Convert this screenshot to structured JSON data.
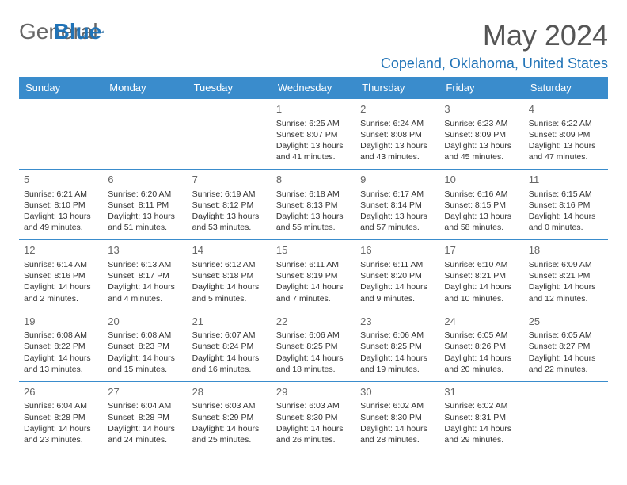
{
  "logo": {
    "text1": "General",
    "text2": "Blue"
  },
  "title": "May 2024",
  "location": "Copeland, Oklahoma, United States",
  "colors": {
    "header_bg": "#3a8ccc",
    "header_text": "#ffffff",
    "accent": "#2073b7",
    "body_text": "#333333",
    "muted": "#666666",
    "border": "#3a8ccc",
    "page_bg": "#ffffff"
  },
  "fonts": {
    "title_size": 36,
    "location_size": 18,
    "day_header_size": 13,
    "cell_size": 10.5,
    "daynum_size": 13
  },
  "days_of_week": [
    "Sunday",
    "Monday",
    "Tuesday",
    "Wednesday",
    "Thursday",
    "Friday",
    "Saturday"
  ],
  "weeks": [
    [
      null,
      null,
      null,
      {
        "n": "1",
        "sunrise": "6:25 AM",
        "sunset": "8:07 PM",
        "daylight": "13 hours and 41 minutes."
      },
      {
        "n": "2",
        "sunrise": "6:24 AM",
        "sunset": "8:08 PM",
        "daylight": "13 hours and 43 minutes."
      },
      {
        "n": "3",
        "sunrise": "6:23 AM",
        "sunset": "8:09 PM",
        "daylight": "13 hours and 45 minutes."
      },
      {
        "n": "4",
        "sunrise": "6:22 AM",
        "sunset": "8:09 PM",
        "daylight": "13 hours and 47 minutes."
      }
    ],
    [
      {
        "n": "5",
        "sunrise": "6:21 AM",
        "sunset": "8:10 PM",
        "daylight": "13 hours and 49 minutes."
      },
      {
        "n": "6",
        "sunrise": "6:20 AM",
        "sunset": "8:11 PM",
        "daylight": "13 hours and 51 minutes."
      },
      {
        "n": "7",
        "sunrise": "6:19 AM",
        "sunset": "8:12 PM",
        "daylight": "13 hours and 53 minutes."
      },
      {
        "n": "8",
        "sunrise": "6:18 AM",
        "sunset": "8:13 PM",
        "daylight": "13 hours and 55 minutes."
      },
      {
        "n": "9",
        "sunrise": "6:17 AM",
        "sunset": "8:14 PM",
        "daylight": "13 hours and 57 minutes."
      },
      {
        "n": "10",
        "sunrise": "6:16 AM",
        "sunset": "8:15 PM",
        "daylight": "13 hours and 58 minutes."
      },
      {
        "n": "11",
        "sunrise": "6:15 AM",
        "sunset": "8:16 PM",
        "daylight": "14 hours and 0 minutes."
      }
    ],
    [
      {
        "n": "12",
        "sunrise": "6:14 AM",
        "sunset": "8:16 PM",
        "daylight": "14 hours and 2 minutes."
      },
      {
        "n": "13",
        "sunrise": "6:13 AM",
        "sunset": "8:17 PM",
        "daylight": "14 hours and 4 minutes."
      },
      {
        "n": "14",
        "sunrise": "6:12 AM",
        "sunset": "8:18 PM",
        "daylight": "14 hours and 5 minutes."
      },
      {
        "n": "15",
        "sunrise": "6:11 AM",
        "sunset": "8:19 PM",
        "daylight": "14 hours and 7 minutes."
      },
      {
        "n": "16",
        "sunrise": "6:11 AM",
        "sunset": "8:20 PM",
        "daylight": "14 hours and 9 minutes."
      },
      {
        "n": "17",
        "sunrise": "6:10 AM",
        "sunset": "8:21 PM",
        "daylight": "14 hours and 10 minutes."
      },
      {
        "n": "18",
        "sunrise": "6:09 AM",
        "sunset": "8:21 PM",
        "daylight": "14 hours and 12 minutes."
      }
    ],
    [
      {
        "n": "19",
        "sunrise": "6:08 AM",
        "sunset": "8:22 PM",
        "daylight": "14 hours and 13 minutes."
      },
      {
        "n": "20",
        "sunrise": "6:08 AM",
        "sunset": "8:23 PM",
        "daylight": "14 hours and 15 minutes."
      },
      {
        "n": "21",
        "sunrise": "6:07 AM",
        "sunset": "8:24 PM",
        "daylight": "14 hours and 16 minutes."
      },
      {
        "n": "22",
        "sunrise": "6:06 AM",
        "sunset": "8:25 PM",
        "daylight": "14 hours and 18 minutes."
      },
      {
        "n": "23",
        "sunrise": "6:06 AM",
        "sunset": "8:25 PM",
        "daylight": "14 hours and 19 minutes."
      },
      {
        "n": "24",
        "sunrise": "6:05 AM",
        "sunset": "8:26 PM",
        "daylight": "14 hours and 20 minutes."
      },
      {
        "n": "25",
        "sunrise": "6:05 AM",
        "sunset": "8:27 PM",
        "daylight": "14 hours and 22 minutes."
      }
    ],
    [
      {
        "n": "26",
        "sunrise": "6:04 AM",
        "sunset": "8:28 PM",
        "daylight": "14 hours and 23 minutes."
      },
      {
        "n": "27",
        "sunrise": "6:04 AM",
        "sunset": "8:28 PM",
        "daylight": "14 hours and 24 minutes."
      },
      {
        "n": "28",
        "sunrise": "6:03 AM",
        "sunset": "8:29 PM",
        "daylight": "14 hours and 25 minutes."
      },
      {
        "n": "29",
        "sunrise": "6:03 AM",
        "sunset": "8:30 PM",
        "daylight": "14 hours and 26 minutes."
      },
      {
        "n": "30",
        "sunrise": "6:02 AM",
        "sunset": "8:30 PM",
        "daylight": "14 hours and 28 minutes."
      },
      {
        "n": "31",
        "sunrise": "6:02 AM",
        "sunset": "8:31 PM",
        "daylight": "14 hours and 29 minutes."
      },
      null
    ]
  ],
  "labels": {
    "sunrise": "Sunrise:",
    "sunset": "Sunset:",
    "daylight": "Daylight:"
  }
}
